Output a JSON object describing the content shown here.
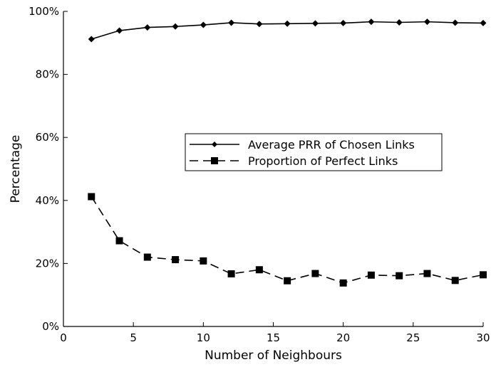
{
  "chart_data": {
    "type": "line",
    "title": "",
    "xlabel": "Number of Neighbours",
    "ylabel": "Percentage",
    "xlim": [
      0,
      30
    ],
    "ylim": [
      0,
      100
    ],
    "xticks": [
      0,
      5,
      10,
      15,
      20,
      25,
      30
    ],
    "yticks": [
      0,
      20,
      40,
      60,
      80,
      100
    ],
    "x_tick_labels": [
      "0",
      "5",
      "10",
      "15",
      "20",
      "25",
      "30"
    ],
    "y_tick_labels": [
      "0%",
      "20%",
      "40%",
      "60%",
      "80%",
      "100%"
    ],
    "grid": false,
    "legend_position": "center-right",
    "x": [
      2,
      4,
      6,
      8,
      10,
      12,
      14,
      16,
      18,
      20,
      22,
      24,
      26,
      28,
      30
    ],
    "series": [
      {
        "name": "Average PRR of Chosen Links",
        "marker": "diamond",
        "line_style": "solid",
        "color": "#000000",
        "values": [
          91.2,
          93.9,
          94.9,
          95.2,
          95.7,
          96.4,
          96.0,
          96.1,
          96.2,
          96.3,
          96.7,
          96.5,
          96.7,
          96.4,
          96.3
        ]
      },
      {
        "name": "Proportion of Perfect Links",
        "marker": "square",
        "line_style": "dashed",
        "color": "#000000",
        "values": [
          41.2,
          27.2,
          22.0,
          21.2,
          20.8,
          16.7,
          18.0,
          14.5,
          16.8,
          13.8,
          16.3,
          16.1,
          16.8,
          14.6,
          16.4
        ]
      }
    ]
  }
}
